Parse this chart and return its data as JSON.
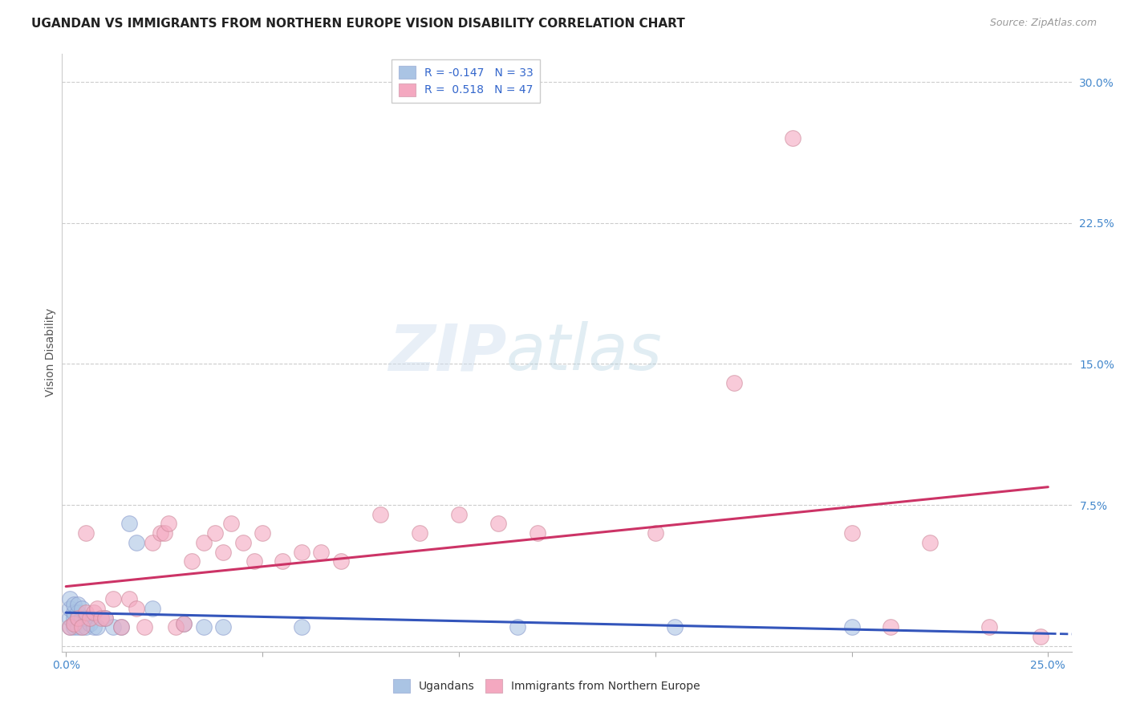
{
  "title": "UGANDAN VS IMMIGRANTS FROM NORTHERN EUROPE VISION DISABILITY CORRELATION CHART",
  "source": "Source: ZipAtlas.com",
  "ylabel": "Vision Disability",
  "xlim": [
    -0.001,
    0.256
  ],
  "ylim": [
    -0.003,
    0.315
  ],
  "xticks": [
    0.0,
    0.05,
    0.1,
    0.15,
    0.2,
    0.25
  ],
  "yticks": [
    0.0,
    0.075,
    0.15,
    0.225,
    0.3
  ],
  "ytick_labels": [
    "",
    "7.5%",
    "15.0%",
    "22.5%",
    "30.0%"
  ],
  "xtick_labels": [
    "0.0%",
    "",
    "",
    "",
    "",
    "25.0%"
  ],
  "ugandan_color": "#aac4e4",
  "immigrant_color": "#f4a8c0",
  "ugandan_line_color": "#3355bb",
  "immigrant_line_color": "#cc3366",
  "legend_entries": [
    "R = -0.147   N = 33",
    "R =  0.518   N = 47"
  ],
  "legend_bottom": [
    "Ugandans",
    "Immigrants from Northern Europe"
  ],
  "ugandan_x": [
    0.001,
    0.001,
    0.001,
    0.001,
    0.002,
    0.002,
    0.002,
    0.002,
    0.003,
    0.003,
    0.003,
    0.003,
    0.004,
    0.004,
    0.004,
    0.005,
    0.005,
    0.006,
    0.007,
    0.008,
    0.01,
    0.012,
    0.014,
    0.016,
    0.018,
    0.022,
    0.03,
    0.035,
    0.04,
    0.06,
    0.115,
    0.155,
    0.2
  ],
  "ugandan_y": [
    0.01,
    0.015,
    0.02,
    0.025,
    0.01,
    0.015,
    0.018,
    0.022,
    0.01,
    0.015,
    0.018,
    0.022,
    0.01,
    0.015,
    0.02,
    0.01,
    0.015,
    0.012,
    0.01,
    0.01,
    0.015,
    0.01,
    0.01,
    0.065,
    0.055,
    0.02,
    0.012,
    0.01,
    0.01,
    0.01,
    0.01,
    0.01,
    0.01
  ],
  "immigrant_x": [
    0.001,
    0.002,
    0.003,
    0.004,
    0.005,
    0.005,
    0.006,
    0.007,
    0.008,
    0.009,
    0.01,
    0.012,
    0.014,
    0.016,
    0.018,
    0.02,
    0.022,
    0.024,
    0.025,
    0.026,
    0.028,
    0.03,
    0.032,
    0.035,
    0.038,
    0.04,
    0.042,
    0.045,
    0.048,
    0.05,
    0.055,
    0.06,
    0.065,
    0.07,
    0.08,
    0.09,
    0.1,
    0.11,
    0.12,
    0.15,
    0.17,
    0.185,
    0.2,
    0.21,
    0.22,
    0.235,
    0.248
  ],
  "immigrant_y": [
    0.01,
    0.012,
    0.015,
    0.01,
    0.018,
    0.06,
    0.015,
    0.018,
    0.02,
    0.015,
    0.015,
    0.025,
    0.01,
    0.025,
    0.02,
    0.01,
    0.055,
    0.06,
    0.06,
    0.065,
    0.01,
    0.012,
    0.045,
    0.055,
    0.06,
    0.05,
    0.065,
    0.055,
    0.045,
    0.06,
    0.045,
    0.05,
    0.05,
    0.045,
    0.07,
    0.06,
    0.07,
    0.065,
    0.06,
    0.06,
    0.14,
    0.27,
    0.06,
    0.01,
    0.055,
    0.01,
    0.005
  ],
  "title_fontsize": 11,
  "tick_fontsize": 10,
  "legend_fontsize": 10,
  "source_fontsize": 9
}
